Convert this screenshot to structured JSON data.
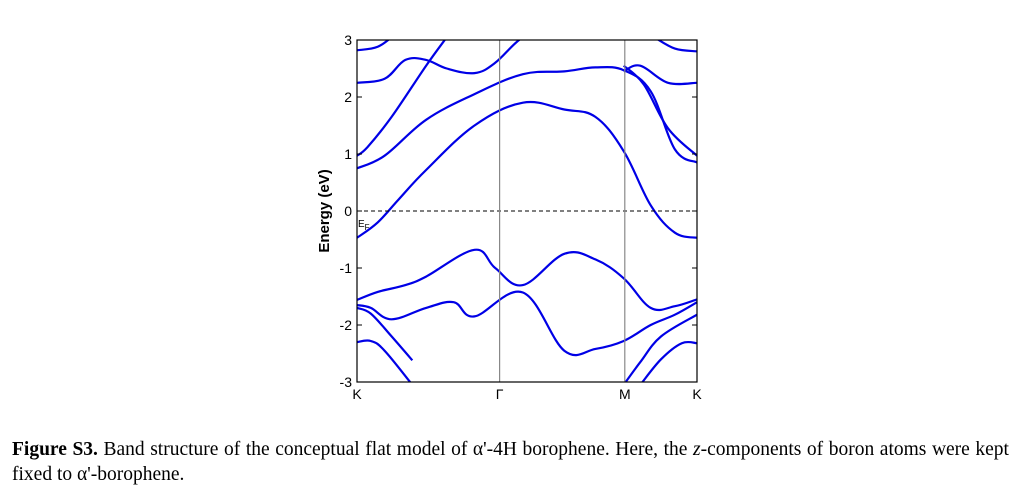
{
  "chart_data": {
    "type": "line",
    "ylabel": "Energy (eV)",
    "ylim": [
      -3,
      3
    ],
    "yticks": [
      "3",
      "2",
      "1",
      "0",
      "-1",
      "-2",
      "-3"
    ],
    "xticks": [
      "K",
      "Γ",
      "M",
      "K"
    ],
    "fermi_label": "E",
    "fermi_label_sub": "F",
    "fermi_level": 0,
    "grid": false,
    "series": [
      {
        "x": [
          0,
          0.3,
          0.6,
          1.0,
          1.7,
          2.4,
          3.0,
          3.45,
          3.86,
          4.25,
          4.6,
          4.92
        ],
        "values": [
          -0.47,
          -0.2,
          0.2,
          0.72,
          1.5,
          1.9,
          1.78,
          1.65,
          1.05,
          0.1,
          -0.38,
          -0.47
        ]
      },
      {
        "x": [
          0,
          0.4,
          1.0,
          1.7,
          2.4,
          3.0,
          3.45,
          3.86,
          4.25,
          4.6,
          4.92
        ],
        "values": [
          0.75,
          0.97,
          1.6,
          2.05,
          2.4,
          2.45,
          2.52,
          2.47,
          2.1,
          1.08,
          0.85
        ]
      },
      {
        "x": [
          0,
          0.15,
          0.5,
          1.0,
          1.3
        ],
        "values": [
          0.97,
          1.12,
          1.65,
          2.55,
          3.05
        ]
      },
      {
        "x": [
          0,
          0.4,
          0.7,
          1.0,
          1.3,
          1.7,
          2.0,
          2.4,
          2.8
        ],
        "values": [
          2.25,
          2.32,
          2.65,
          2.65,
          2.5,
          2.42,
          2.6,
          3.05,
          3.2
        ]
      },
      {
        "x": [
          0,
          0.3,
          0.55
        ],
        "values": [
          2.82,
          2.88,
          3.1
        ]
      },
      {
        "x": [
          3.86,
          4.15,
          4.5,
          4.92
        ],
        "values": [
          2.55,
          2.22,
          1.45,
          0.97
        ]
      },
      {
        "x": [
          3.86,
          4.1,
          4.5,
          4.92
        ],
        "values": [
          2.45,
          2.55,
          2.25,
          2.25
        ]
      },
      {
        "x": [
          4.3,
          4.6,
          4.92
        ],
        "values": [
          3.05,
          2.85,
          2.8
        ]
      },
      {
        "x": [
          0,
          0.3,
          0.7,
          1.0,
          1.7,
          2.0,
          2.4,
          3.0,
          3.45,
          3.86,
          4.25,
          4.6,
          4.92
        ],
        "values": [
          -1.56,
          -1.42,
          -1.3,
          -1.15,
          -0.68,
          -1.0,
          -1.3,
          -0.75,
          -0.85,
          -1.18,
          -1.7,
          -1.67,
          -1.55
        ]
      },
      {
        "x": [
          0,
          0.2,
          0.5,
          1.0,
          1.4,
          1.7,
          2.4,
          3.0,
          3.45,
          3.86,
          4.25,
          4.6,
          4.92
        ],
        "values": [
          -1.65,
          -1.7,
          -1.9,
          -1.7,
          -1.6,
          -1.85,
          -1.43,
          -2.45,
          -2.42,
          -2.28,
          -2.0,
          -1.82,
          -1.6
        ]
      },
      {
        "x": [
          0,
          0.2,
          0.5,
          0.8
        ],
        "values": [
          -1.7,
          -1.8,
          -2.2,
          -2.62
        ]
      },
      {
        "x": [
          0,
          0.2,
          0.4,
          0.8
        ],
        "values": [
          -2.3,
          -2.28,
          -2.45,
          -3.05
        ]
      },
      {
        "x": [
          3.86,
          4.1,
          4.4,
          4.92
        ],
        "values": [
          -3.05,
          -2.65,
          -2.2,
          -1.82
        ]
      },
      {
        "x": [
          4.1,
          4.4,
          4.7,
          4.92
        ],
        "values": [
          -3.05,
          -2.6,
          -2.32,
          -2.32
        ]
      }
    ]
  },
  "caption": {
    "label": "Figure S3.",
    "text_before_z": " Band structure of the conceptual flat model of α'-4H borophene. Here, the ",
    "z": "z",
    "text_after_z": "-components of boron atoms were kept fixed to α'-borophene."
  }
}
